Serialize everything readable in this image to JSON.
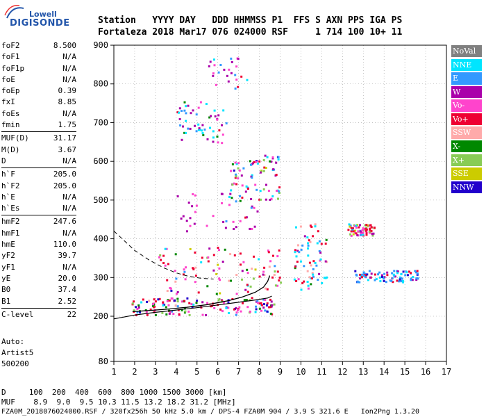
{
  "logo": {
    "top": "Lowell",
    "main": "DIGISONDE"
  },
  "header": {
    "line1": "Station   YYYY DAY   DDD HHMMSS P1  FFS S AXN PPS IGA PS",
    "line2": "Fortaleza 2018 Mar17 076 024000 RSF     1 714 100 10+ 11"
  },
  "params": [
    [
      {
        "label": "foF2",
        "value": "8.500"
      },
      {
        "label": "foF1",
        "value": "N/A"
      },
      {
        "label": "foF1p",
        "value": "N/A"
      },
      {
        "label": "foE",
        "value": "N/A"
      },
      {
        "label": "foEp",
        "value": "0.39"
      },
      {
        "label": "fxI",
        "value": "8.85"
      },
      {
        "label": "foEs",
        "value": "N/A"
      },
      {
        "label": "fmin",
        "value": "1.75"
      }
    ],
    [
      {
        "label": "MUF(D)",
        "value": "31.17"
      },
      {
        "label": "M(D)",
        "value": "3.67"
      },
      {
        "label": "D",
        "value": "N/A"
      }
    ],
    [
      {
        "label": "h`F",
        "value": "205.0"
      },
      {
        "label": "h`F2",
        "value": "205.0"
      },
      {
        "label": "h`E",
        "value": "N/A"
      },
      {
        "label": "h`Es",
        "value": "N/A"
      }
    ],
    [
      {
        "label": "hmF2",
        "value": "247.6"
      },
      {
        "label": "hmF1",
        "value": "N/A"
      },
      {
        "label": "hmE",
        "value": "110.0"
      },
      {
        "label": "yF2",
        "value": "39.7"
      },
      {
        "label": "yF1",
        "value": "N/A"
      },
      {
        "label": "yE",
        "value": "20.0"
      },
      {
        "label": "B0",
        "value": "37.4"
      },
      {
        "label": "B1",
        "value": "2.52"
      }
    ],
    [
      {
        "label": "C-level",
        "value": "22"
      }
    ]
  ],
  "auto": {
    "line1": "Auto:",
    "line2": "Artist5",
    "line3": "500200"
  },
  "legend": [
    {
      "label": "NoVal",
      "color": "#808080"
    },
    {
      "label": "NNE",
      "color": "#00e5ff"
    },
    {
      "label": "E",
      "color": "#3399ff"
    },
    {
      "label": "W",
      "color": "#aa00aa"
    },
    {
      "label": "Vo-",
      "color": "#ff44cc"
    },
    {
      "label": "Vo+",
      "color": "#ee0033"
    },
    {
      "label": "SSW",
      "color": "#ffaaaa"
    },
    {
      "label": "X-",
      "color": "#008800"
    },
    {
      "label": "X+",
      "color": "#88cc55"
    },
    {
      "label": "SSE",
      "color": "#cccc00"
    },
    {
      "label": "NNW",
      "color": "#2200cc"
    }
  ],
  "chart_data": {
    "type": "scatter",
    "x_ticks": [
      "1",
      "2",
      "3",
      "4",
      "5",
      "6",
      "7",
      "8",
      "9",
      "10",
      "11",
      "12",
      "13",
      "14",
      "15",
      "16",
      "17"
    ],
    "y_ticks": [
      "80",
      "200",
      "300",
      "400",
      "500",
      "600",
      "700",
      "800",
      "900"
    ],
    "xlim": [
      1,
      17
    ],
    "ylim": [
      80,
      900
    ],
    "grid": true,
    "trace_curve": [
      [
        1.0,
        193
      ],
      [
        2.0,
        203
      ],
      [
        3.0,
        210
      ],
      [
        4.0,
        216
      ],
      [
        5.0,
        222
      ],
      [
        6.0,
        229
      ],
      [
        7.0,
        236
      ],
      [
        7.8,
        242
      ],
      [
        8.4,
        247
      ],
      [
        8.6,
        252
      ]
    ],
    "profile_solid": [
      [
        1.9,
        212
      ],
      [
        2.5,
        214
      ],
      [
        3.5,
        218
      ],
      [
        4.5,
        223
      ],
      [
        5.5,
        230
      ],
      [
        6.5,
        240
      ],
      [
        7.2,
        250
      ],
      [
        7.8,
        262
      ],
      [
        8.2,
        275
      ],
      [
        8.4,
        290
      ],
      [
        8.5,
        305
      ]
    ],
    "profile_dashed": [
      [
        1.0,
        420
      ],
      [
        1.5,
        395
      ],
      [
        2.0,
        370
      ],
      [
        2.7,
        345
      ],
      [
        3.4,
        325
      ],
      [
        4.0,
        312
      ],
      [
        4.6,
        303
      ],
      [
        5.2,
        298
      ],
      [
        5.8,
        296
      ]
    ],
    "dot_counts": [
      160,
      100,
      40,
      80,
      70,
      70,
      90,
      55,
      25
    ]
  },
  "footer": {
    "line1": "D     100  200  400  600  800 1000 1500 3000 [km]",
    "line2": "MUF    8.9  9.0  9.5 10.3 11.5 13.2 18.2 31.2 [MHz]",
    "line3": "FZA0M_2018076024000.RSF / 320fx256h 50 kHz 5.0 km / DPS-4 FZA0M 904 / 3.9 S 321.6 E   Ion2Png 1.3.20"
  }
}
